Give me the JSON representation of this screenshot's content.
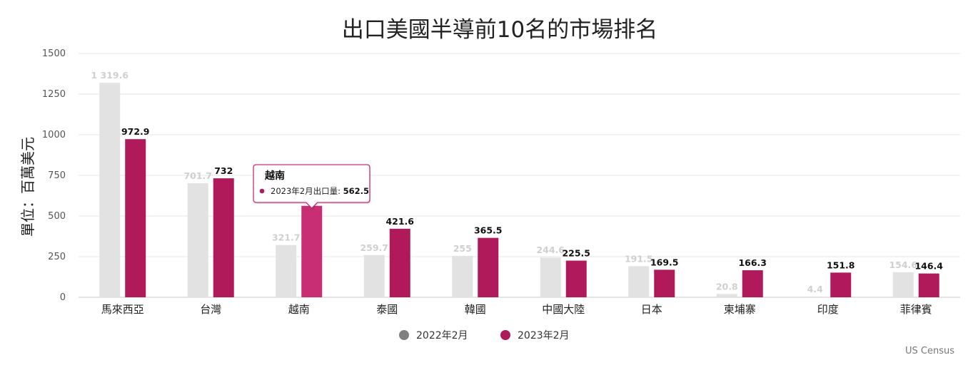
{
  "chart_data": {
    "type": "bar",
    "title": "出口美國半導前10名的市場排名",
    "ylabel": "單位：百萬美元",
    "xlabel": "",
    "ylim": [
      0,
      1500
    ],
    "yticks": [
      "0",
      "250",
      "500",
      "750",
      "1000",
      "1250",
      "1500"
    ],
    "grid": true,
    "categories": [
      "馬來西亞",
      "台灣",
      "越南",
      "泰國",
      "韓國",
      "中國大陸",
      "日本",
      "柬埔寨",
      "印度",
      "菲律賓"
    ],
    "series": [
      {
        "name": "2022年2月",
        "color": "#e2e2e2",
        "legend_color": "#7f7f7f",
        "values": [
          1319.6,
          701.7,
          321.7,
          259.7,
          255,
          244.6,
          191.5,
          20.8,
          4.4,
          154.6
        ],
        "labels": [
          "1 319.6",
          "701.7",
          "321.7",
          "259.7",
          "255",
          "244.6",
          "191.5",
          "20.8",
          "4.4",
          "154.6"
        ]
      },
      {
        "name": "2023年2月",
        "color": "#b0195a",
        "legend_color": "#b0195a",
        "values": [
          972.9,
          732,
          562.5,
          421.6,
          365.5,
          225.5,
          169.5,
          166.3,
          151.8,
          146.4
        ],
        "labels": [
          "972.9",
          "732",
          "",
          "421.6",
          "365.5",
          "225.5",
          "169.5",
          "166.3",
          "151.8",
          "146.4"
        ]
      }
    ],
    "legend_position": "bottom",
    "highlight": {
      "category_index": 2,
      "series_index": 1,
      "color": "#c72e73"
    },
    "tooltip": {
      "title": "越南",
      "label": "2023年2月出口量: ",
      "value": "562.5"
    },
    "credit": "US Census"
  }
}
